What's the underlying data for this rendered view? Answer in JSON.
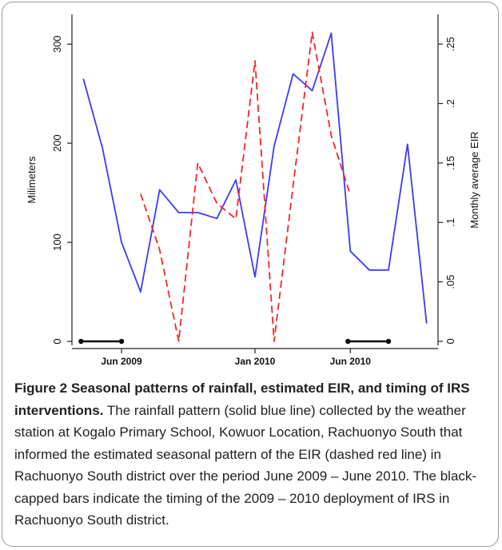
{
  "chart_data": {
    "type": "line",
    "x": [
      "2009-04",
      "2009-05",
      "2009-06",
      "2009-07",
      "2009-08",
      "2009-09",
      "2009-10",
      "2009-11",
      "2009-12",
      "2010-01",
      "2010-02",
      "2010-03",
      "2010-04",
      "2010-05",
      "2010-06",
      "2010-07",
      "2010-08",
      "2010-09",
      "2010-10"
    ],
    "series": [
      {
        "name": "Rainfall",
        "color": "#3a3aff",
        "values": [
          265,
          195,
          100,
          50,
          153,
          130,
          130,
          124,
          163,
          65,
          197,
          270,
          253,
          311,
          91,
          72,
          72,
          199,
          18
        ]
      },
      {
        "name": "EIR",
        "color": "#ff2222",
        "axis": "y2",
        "dashed": true,
        "values": [
          null,
          null,
          null,
          0.124,
          0.077,
          0,
          0.15,
          0.116,
          0.103,
          0.236,
          0,
          0.131,
          0.26,
          0.173,
          0.123,
          null,
          null,
          null,
          null
        ]
      }
    ],
    "irs_periods": [
      {
        "start": "2009-04",
        "end": "2009-06"
      },
      {
        "start": "2010-06",
        "end": "2010-08"
      }
    ],
    "xlim": [
      "2009-04",
      "2010-10"
    ],
    "xticks": [
      {
        "value": "2009-06",
        "label": "Jun 2009"
      },
      {
        "value": "2010-01",
        "label": "Jan 2010"
      },
      {
        "value": "2010-06",
        "label": "Jun 2010"
      }
    ],
    "ylabel": "Milimeters",
    "ylim": [
      -4,
      330
    ],
    "yticks": [
      0,
      100,
      200,
      300
    ],
    "y2label": "Monthly average EIR",
    "y2lim": [
      -0.0034,
      0.275
    ],
    "y2ticks": [
      0,
      {
        "value": 0.05,
        "label": ".05"
      },
      {
        "value": 0.1,
        "label": ".1"
      },
      {
        "value": 0.15,
        "label": ".15"
      },
      {
        "value": 0.2,
        "label": ".2"
      },
      {
        "value": 0.25,
        "label": ".25"
      }
    ]
  },
  "caption": {
    "title": "Figure 2 Seasonal patterns of rainfall, estimated EIR, and timing of IRS interventions.",
    "text": "The rainfall pattern (solid blue line) collected by the weather station at Kogalo Primary School, Kowuor Location, Rachuonyo South that informed the estimated seasonal pattern of the EIR (dashed red line) in Rachuonyo South district over the period June 2009 – June 2010. The black-capped bars indicate the timing of the 2009 – 2010 deployment of IRS in Rachuonyo South district."
  }
}
